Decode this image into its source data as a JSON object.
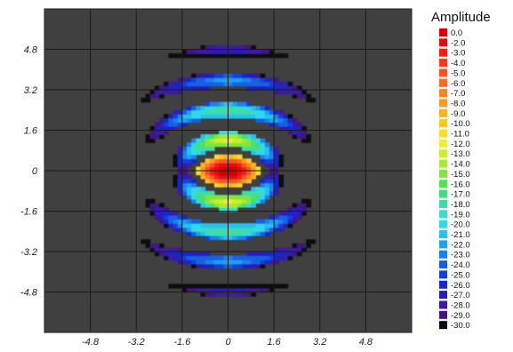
{
  "chart_data": {
    "type": "heatmap",
    "title": "",
    "xlabel": "",
    "ylabel": "",
    "xlim": [
      -6.4,
      6.4
    ],
    "ylim": [
      -6.4,
      6.4
    ],
    "grid": true,
    "x_ticks": [
      {
        "value": -4.8,
        "label": "-4.8"
      },
      {
        "value": -3.2,
        "label": "-3.2"
      },
      {
        "value": -1.6,
        "label": "-1.6"
      },
      {
        "value": 0,
        "label": "0"
      },
      {
        "value": 1.6,
        "label": "1.6"
      },
      {
        "value": 3.2,
        "label": "3.2"
      },
      {
        "value": 4.8,
        "label": "4.8"
      }
    ],
    "y_ticks": [
      {
        "value": 4.8,
        "label": "4.8"
      },
      {
        "value": 3.2,
        "label": "3.2"
      },
      {
        "value": 1.6,
        "label": "1.6"
      },
      {
        "value": 0,
        "label": "0"
      },
      {
        "value": -1.6,
        "label": "-1.6"
      },
      {
        "value": -3.2,
        "label": "-3.2"
      },
      {
        "value": -4.8,
        "label": "-4.8"
      }
    ],
    "background_color": "#404040",
    "legend": {
      "title": "Amplitude",
      "placement": "right",
      "entries": [
        {
          "label": "0.0",
          "color": "#d40000"
        },
        {
          "label": "-2.0",
          "color": "#e60a0a"
        },
        {
          "label": "-3.0",
          "color": "#f51a12"
        },
        {
          "label": "-4.0",
          "color": "#f73a1a"
        },
        {
          "label": "-5.0",
          "color": "#f85520"
        },
        {
          "label": "-6.0",
          "color": "#f86d22"
        },
        {
          "label": "-7.0",
          "color": "#f98424"
        },
        {
          "label": "-8.0",
          "color": "#fa9a26"
        },
        {
          "label": "-9.0",
          "color": "#fbb126"
        },
        {
          "label": "-10.0",
          "color": "#fcc726"
        },
        {
          "label": "-11.0",
          "color": "#fbdc26"
        },
        {
          "label": "-12.0",
          "color": "#f0ee26"
        },
        {
          "label": "-13.0",
          "color": "#cdee2a"
        },
        {
          "label": "-14.0",
          "color": "#a8ea30"
        },
        {
          "label": "-15.0",
          "color": "#7fe63c"
        },
        {
          "label": "-16.0",
          "color": "#55e055"
        },
        {
          "label": "-17.0",
          "color": "#40dc80"
        },
        {
          "label": "-18.0",
          "color": "#3cdcaa"
        },
        {
          "label": "-19.0",
          "color": "#38dccc"
        },
        {
          "label": "-20.0",
          "color": "#30d8e8"
        },
        {
          "label": "-21.0",
          "color": "#28c0f2"
        },
        {
          "label": "-22.0",
          "color": "#1fa0f2"
        },
        {
          "label": "-23.0",
          "color": "#1a80ee"
        },
        {
          "label": "-24.0",
          "color": "#1660e6"
        },
        {
          "label": "-25.0",
          "color": "#1240dc"
        },
        {
          "label": "-26.0",
          "color": "#1428cc"
        },
        {
          "label": "-27.0",
          "color": "#2a1eb8"
        },
        {
          "label": "-28.0",
          "color": "#3c1aa0"
        },
        {
          "label": "-29.0",
          "color": "#421680"
        },
        {
          "label": "-30.0",
          "color": "#0a0a0a"
        }
      ]
    },
    "field": {
      "description_model": "far-field interference pattern: central peak with concentric elliptical side-lobe fringes",
      "peak_db": 0.0,
      "floor_db": -30.0
    }
  }
}
